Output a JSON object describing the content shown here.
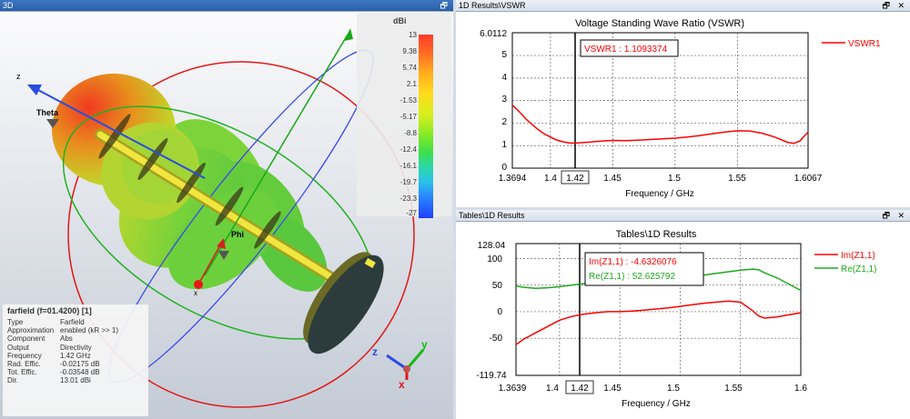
{
  "panes": {
    "view3d": {
      "title": "3D"
    },
    "vswr": {
      "title": "1D Results\\VSWR"
    },
    "tables": {
      "title": "Tables\\1D Results"
    }
  },
  "window_buttons": {
    "restore": "🗗",
    "close": "✕"
  },
  "farfield": {
    "title": "farfield (f=01.4200) [1]",
    "rows": [
      {
        "key": "Type",
        "value": "Farfield"
      },
      {
        "key": "Approximation",
        "value": "enabled (kR >> 1)"
      },
      {
        "key": "Component",
        "value": "Abs"
      },
      {
        "key": "Output",
        "value": "Directivity"
      },
      {
        "key": "Frequency",
        "value": "1.42 GHz"
      },
      {
        "key": "Rad. Effic.",
        "value": "-0.02175 dB"
      },
      {
        "key": "Tot. Effic.",
        "value": "-0.03548 dB"
      },
      {
        "key": "Dir.",
        "value": "13.01 dBi"
      }
    ],
    "axis_labels": {
      "z": "z",
      "theta": "Theta",
      "phi": "Phi",
      "x": "x"
    },
    "triad": {
      "x": "x",
      "y": "y",
      "z": "z"
    }
  },
  "colorbar": {
    "unit": "dBi",
    "ticks": [
      "13",
      "9.38",
      "5.74",
      "2.1",
      "-1.53",
      "-5.17",
      "-8.8",
      "-12.4",
      "-16.1",
      "-19.7",
      "-23.3",
      "-27"
    ]
  },
  "charts": {
    "vswr": {
      "title": "Voltage Standing Wave Ratio (VSWR)",
      "xlabel": "Frequency / GHz",
      "x_ticks": [
        "1.3694",
        "1.4",
        "1.42",
        "1.45",
        "1.5",
        "1.55",
        "1.6067"
      ],
      "y_ticks": [
        "6.0112",
        "5",
        "4",
        "3",
        "2",
        "1",
        "0"
      ],
      "marker_label": "1.42",
      "annotation": "VSWR1 : 1.1093374",
      "legend": [
        "VSWR1"
      ]
    },
    "tables": {
      "title": "Tables\\1D Results",
      "xlabel": "Frequency / GHz",
      "x_ticks": [
        "1.3639",
        "1.4",
        "1.42",
        "1.45",
        "1.5",
        "1.55",
        "1.6"
      ],
      "y_ticks": [
        "128.04",
        "100",
        "50",
        "0",
        "-50",
        "-119.74"
      ],
      "marker_label": "1.42",
      "annotations": [
        "Im(Z1,1) : -4.6326076",
        "Re(Z1,1) : 52.625792"
      ],
      "legend": [
        "Im(Z1,1)",
        "Re(Z1,1)"
      ]
    }
  },
  "chart_data": [
    {
      "type": "line",
      "title": "Voltage Standing Wave Ratio (VSWR)",
      "xlabel": "Frequency / GHz",
      "ylabel": "",
      "xlim": [
        1.3694,
        1.6067
      ],
      "ylim": [
        0,
        6.0112
      ],
      "grid": true,
      "legend_position": "right",
      "marker_x": 1.42,
      "series": [
        {
          "name": "VSWR1",
          "color": "#ff0000",
          "x": [
            1.3694,
            1.375,
            1.38,
            1.385,
            1.39,
            1.395,
            1.4,
            1.405,
            1.41,
            1.415,
            1.42,
            1.43,
            1.44,
            1.45,
            1.46,
            1.47,
            1.48,
            1.49,
            1.5,
            1.51,
            1.52,
            1.53,
            1.54,
            1.55,
            1.56,
            1.57,
            1.58,
            1.59,
            1.595,
            1.6,
            1.6067
          ],
          "y": [
            2.8,
            2.5,
            2.2,
            1.95,
            1.72,
            1.52,
            1.38,
            1.25,
            1.17,
            1.12,
            1.11,
            1.15,
            1.2,
            1.23,
            1.22,
            1.24,
            1.27,
            1.3,
            1.33,
            1.38,
            1.45,
            1.53,
            1.6,
            1.66,
            1.65,
            1.55,
            1.38,
            1.15,
            1.1,
            1.2,
            1.6
          ]
        }
      ]
    },
    {
      "type": "line",
      "title": "Tables\\1D Results",
      "xlabel": "Frequency / GHz",
      "ylabel": "",
      "xlim": [
        1.3639,
        1.6
      ],
      "ylim": [
        -119.74,
        128.04
      ],
      "grid": true,
      "legend_position": "right",
      "marker_x": 1.42,
      "series": [
        {
          "name": "Im(Z1,1)",
          "color": "#ff0000",
          "x": [
            1.3639,
            1.37,
            1.38,
            1.39,
            1.4,
            1.41,
            1.42,
            1.43,
            1.44,
            1.45,
            1.46,
            1.47,
            1.48,
            1.49,
            1.5,
            1.51,
            1.52,
            1.53,
            1.54,
            1.55,
            1.56,
            1.565,
            1.57,
            1.58,
            1.59,
            1.6
          ],
          "y": [
            -62,
            -52,
            -40,
            -28,
            -16,
            -9,
            -4.6,
            -2,
            0,
            0,
            1,
            3,
            5,
            7,
            10,
            13,
            16,
            18,
            20,
            18,
            2,
            -8,
            -12,
            -10,
            -6,
            -2
          ]
        },
        {
          "name": "Re(Z1,1)",
          "color": "#1ea81e",
          "x": [
            1.3639,
            1.37,
            1.38,
            1.39,
            1.4,
            1.41,
            1.42,
            1.43,
            1.44,
            1.45,
            1.46,
            1.47,
            1.48,
            1.49,
            1.5,
            1.51,
            1.52,
            1.53,
            1.54,
            1.55,
            1.56,
            1.565,
            1.57,
            1.58,
            1.59,
            1.6
          ],
          "y": [
            48,
            46,
            44,
            45,
            47,
            50,
            52.6,
            57,
            60,
            63,
            64,
            64,
            64,
            64,
            65,
            66,
            69,
            72,
            75,
            78,
            80,
            79,
            73,
            64,
            52,
            40
          ]
        }
      ]
    }
  ]
}
